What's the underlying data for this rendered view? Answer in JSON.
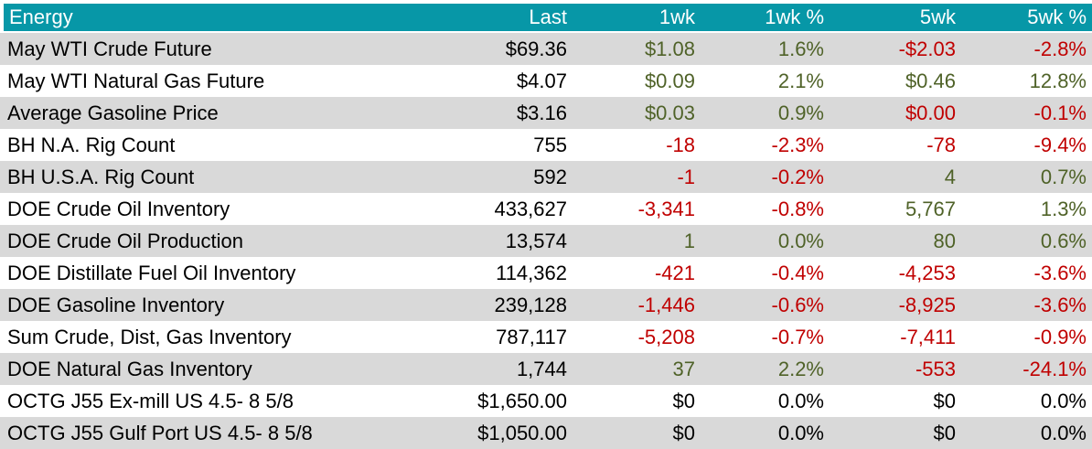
{
  "chart_data": {
    "type": "table",
    "title": "Energy",
    "columns": [
      "Energy",
      "Last",
      "1wk",
      "1wk %",
      "5wk",
      "5wk %"
    ],
    "rows": [
      {
        "label": "May WTI Crude Future",
        "cells": [
          {
            "text": "$69.36",
            "trend": "neutral"
          },
          {
            "text": "$1.08",
            "trend": "positive"
          },
          {
            "text": "1.6%",
            "trend": "positive"
          },
          {
            "text": "-$2.03",
            "trend": "negative"
          },
          {
            "text": "-2.8%",
            "trend": "negative"
          }
        ]
      },
      {
        "label": "May WTI Natural Gas Future",
        "cells": [
          {
            "text": "$4.07",
            "trend": "neutral"
          },
          {
            "text": "$0.09",
            "trend": "positive"
          },
          {
            "text": "2.1%",
            "trend": "positive"
          },
          {
            "text": "$0.46",
            "trend": "positive"
          },
          {
            "text": "12.8%",
            "trend": "positive"
          }
        ]
      },
      {
        "label": "Average Gasoline Price",
        "cells": [
          {
            "text": "$3.16",
            "trend": "neutral"
          },
          {
            "text": "$0.03",
            "trend": "positive"
          },
          {
            "text": "0.9%",
            "trend": "positive"
          },
          {
            "text": "$0.00",
            "trend": "negative"
          },
          {
            "text": "-0.1%",
            "trend": "negative"
          }
        ]
      },
      {
        "label": "BH N.A. Rig Count",
        "cells": [
          {
            "text": "755",
            "trend": "neutral"
          },
          {
            "text": "-18",
            "trend": "negative"
          },
          {
            "text": "-2.3%",
            "trend": "negative"
          },
          {
            "text": "-78",
            "trend": "negative"
          },
          {
            "text": "-9.4%",
            "trend": "negative"
          }
        ]
      },
      {
        "label": "BH U.S.A. Rig Count",
        "cells": [
          {
            "text": "592",
            "trend": "neutral"
          },
          {
            "text": "-1",
            "trend": "negative"
          },
          {
            "text": "-0.2%",
            "trend": "negative"
          },
          {
            "text": "4",
            "trend": "positive"
          },
          {
            "text": "0.7%",
            "trend": "positive"
          }
        ]
      },
      {
        "label": "DOE Crude Oil Inventory",
        "cells": [
          {
            "text": "433,627",
            "trend": "neutral"
          },
          {
            "text": "-3,341",
            "trend": "negative"
          },
          {
            "text": "-0.8%",
            "trend": "negative"
          },
          {
            "text": "5,767",
            "trend": "positive"
          },
          {
            "text": "1.3%",
            "trend": "positive"
          }
        ]
      },
      {
        "label": "DOE Crude Oil Production",
        "cells": [
          {
            "text": "13,574",
            "trend": "neutral"
          },
          {
            "text": "1",
            "trend": "positive"
          },
          {
            "text": "0.0%",
            "trend": "positive"
          },
          {
            "text": "80",
            "trend": "positive"
          },
          {
            "text": "0.6%",
            "trend": "positive"
          }
        ]
      },
      {
        "label": "DOE Distillate Fuel Oil Inventory",
        "cells": [
          {
            "text": "114,362",
            "trend": "neutral"
          },
          {
            "text": "-421",
            "trend": "negative"
          },
          {
            "text": "-0.4%",
            "trend": "negative"
          },
          {
            "text": "-4,253",
            "trend": "negative"
          },
          {
            "text": "-3.6%",
            "trend": "negative"
          }
        ]
      },
      {
        "label": "DOE Gasoline Inventory",
        "cells": [
          {
            "text": "239,128",
            "trend": "neutral"
          },
          {
            "text": "-1,446",
            "trend": "negative"
          },
          {
            "text": "-0.6%",
            "trend": "negative"
          },
          {
            "text": "-8,925",
            "trend": "negative"
          },
          {
            "text": "-3.6%",
            "trend": "negative"
          }
        ]
      },
      {
        "label": "Sum Crude, Dist, Gas Inventory",
        "cells": [
          {
            "text": "787,117",
            "trend": "neutral"
          },
          {
            "text": "-5,208",
            "trend": "negative"
          },
          {
            "text": "-0.7%",
            "trend": "negative"
          },
          {
            "text": "-7,411",
            "trend": "negative"
          },
          {
            "text": "-0.9%",
            "trend": "negative"
          }
        ]
      },
      {
        "label": "DOE Natural Gas Inventory",
        "cells": [
          {
            "text": "1,744",
            "trend": "neutral"
          },
          {
            "text": "37",
            "trend": "positive"
          },
          {
            "text": "2.2%",
            "trend": "positive"
          },
          {
            "text": "-553",
            "trend": "negative"
          },
          {
            "text": "-24.1%",
            "trend": "negative"
          }
        ]
      },
      {
        "label": "OCTG J55 Ex-mill US 4.5- 8 5/8",
        "cells": [
          {
            "text": "$1,650.00",
            "trend": "neutral"
          },
          {
            "text": "$0",
            "trend": "neutral"
          },
          {
            "text": "0.0%",
            "trend": "neutral"
          },
          {
            "text": "$0",
            "trend": "neutral"
          },
          {
            "text": "0.0%",
            "trend": "neutral"
          }
        ]
      },
      {
        "label": "OCTG J55 Gulf Port US 4.5- 8 5/8",
        "cells": [
          {
            "text": "$1,050.00",
            "trend": "neutral"
          },
          {
            "text": "$0",
            "trend": "neutral"
          },
          {
            "text": "0.0%",
            "trend": "neutral"
          },
          {
            "text": "$0",
            "trend": "neutral"
          },
          {
            "text": "0.0%",
            "trend": "neutral"
          }
        ]
      }
    ],
    "layout": {
      "header_alignment": "right",
      "first_column_alignment": "left",
      "alternating_rows": true
    }
  },
  "colors": {
    "header_bg": "#0797A7",
    "header_text": "#FFFFFF",
    "row_bg": "#FFFFFF",
    "row_alt_bg": "#D9D9D9",
    "positive": "#4F6228",
    "negative": "#C00000",
    "neutral": "#000000"
  }
}
